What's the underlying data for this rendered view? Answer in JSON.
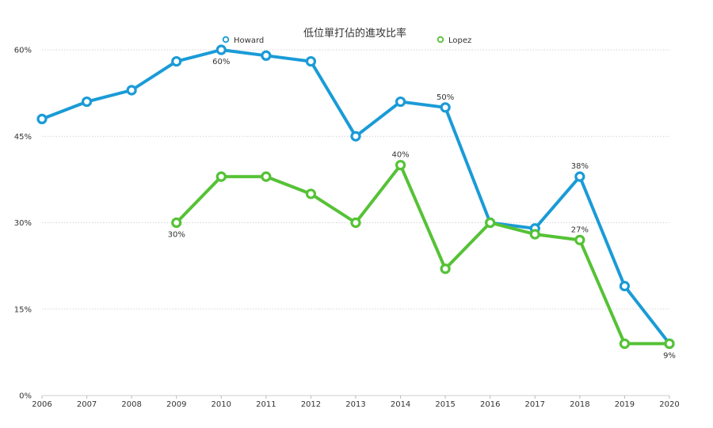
{
  "chart_data": {
    "type": "line",
    "title": "低位單打佔的進攻比率",
    "xlabel": "",
    "ylabel": "",
    "categories": [
      "2006",
      "2007",
      "2008",
      "2009",
      "2010",
      "2011",
      "2012",
      "2013",
      "2014",
      "2015",
      "2016",
      "2017",
      "2018",
      "2019",
      "2020"
    ],
    "ylim": [
      0,
      60
    ],
    "yticks": [
      0,
      15,
      30,
      45,
      60
    ],
    "ytick_labels": [
      "0%",
      "15%",
      "30%",
      "45%",
      "60%"
    ],
    "grid": true,
    "legend_position": "top",
    "series": [
      {
        "name": "Howard",
        "color": "#1a9bd7",
        "values": [
          48,
          51,
          53,
          58,
          60,
          59,
          58,
          45,
          51,
          50,
          30,
          29,
          38,
          19,
          9
        ],
        "data_labels": [
          {
            "index": 4,
            "text": "60%",
            "position": "below"
          },
          {
            "index": 9,
            "text": "50%",
            "position": "above"
          },
          {
            "index": 12,
            "text": "38%",
            "position": "above"
          },
          {
            "index": 14,
            "text": "9%",
            "position": "below"
          }
        ]
      },
      {
        "name": "Lopez",
        "color": "#55c236",
        "values": [
          null,
          null,
          null,
          30,
          38,
          38,
          35,
          30,
          40,
          22,
          30,
          28,
          27,
          9,
          9
        ],
        "data_labels": [
          {
            "index": 3,
            "text": "30%",
            "position": "below"
          },
          {
            "index": 8,
            "text": "40%",
            "position": "above"
          },
          {
            "index": 12,
            "text": "27%",
            "position": "above"
          }
        ]
      }
    ]
  }
}
